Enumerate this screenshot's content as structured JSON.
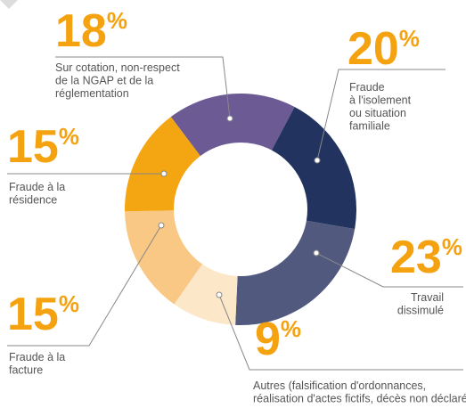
{
  "chart_data": {
    "type": "donut",
    "categories": [
      [
        "Sur cotation, non-respect",
        "de la NGAP et de la",
        "réglementation"
      ],
      [
        "Fraude",
        "à l'isolement",
        "ou situation",
        "familiale"
      ],
      [
        "Travail",
        "dissimulé"
      ],
      [
        "Autres (falsification d'ordonnances,",
        "réalisation d'actes fictifs, décès non déclaré)"
      ],
      [
        "Fraude à la",
        "facture"
      ],
      [
        "Fraude à la",
        "résidence"
      ]
    ],
    "values": [
      18,
      20,
      23,
      9,
      15,
      15
    ],
    "value_labels": [
      "18%",
      "20%",
      "23%",
      "9%",
      "15%",
      "15%"
    ],
    "colors": [
      "#6c5a94",
      "#22335f",
      "#52597f",
      "#fce8c8",
      "#f9c885",
      "#f4a512"
    ]
  }
}
